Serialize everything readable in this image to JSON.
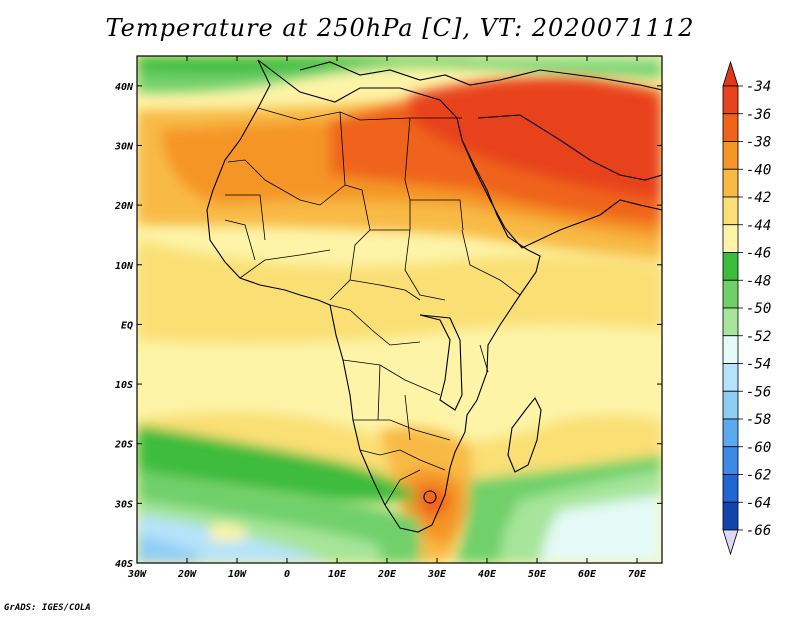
{
  "title": "Temperature at 250hPa [C], VT: 2020071112",
  "credit": "GrADS: IGES/COLA",
  "map": {
    "lon_range": [
      -30,
      75
    ],
    "lat_range": [
      -40,
      45
    ],
    "lon_ticks": [
      {
        "value": -30,
        "label": "30W"
      },
      {
        "value": -20,
        "label": "20W"
      },
      {
        "value": -10,
        "label": "10W"
      },
      {
        "value": 0,
        "label": "0"
      },
      {
        "value": 10,
        "label": "10E"
      },
      {
        "value": 20,
        "label": "20E"
      },
      {
        "value": 30,
        "label": "30E"
      },
      {
        "value": 40,
        "label": "40E"
      },
      {
        "value": 50,
        "label": "50E"
      },
      {
        "value": 60,
        "label": "60E"
      },
      {
        "value": 70,
        "label": "70E"
      }
    ],
    "lat_ticks": [
      {
        "value": 40,
        "label": "40N"
      },
      {
        "value": 30,
        "label": "30N"
      },
      {
        "value": 20,
        "label": "20N"
      },
      {
        "value": 10,
        "label": "10N"
      },
      {
        "value": 0,
        "label": "EQ"
      },
      {
        "value": -10,
        "label": "10S"
      },
      {
        "value": -20,
        "label": "20S"
      },
      {
        "value": -30,
        "label": "30S"
      },
      {
        "value": -40,
        "label": "40S"
      }
    ],
    "field": "temperature",
    "level": "250hPa",
    "units": "C"
  },
  "colorbar": {
    "levels": [
      {
        "label": "-34",
        "color": "#e8431c"
      },
      {
        "label": "-36",
        "color": "#f0641a"
      },
      {
        "label": "-38",
        "color": "#f59528"
      },
      {
        "label": "-40",
        "color": "#f8ba45"
      },
      {
        "label": "-42",
        "color": "#fadf75"
      },
      {
        "label": "-44",
        "color": "#fdf4a8"
      },
      {
        "label": "-46",
        "color": "#3cbc3d"
      },
      {
        "label": "-48",
        "color": "#6fd06a"
      },
      {
        "label": "-50",
        "color": "#a6e59a"
      },
      {
        "label": "-52",
        "color": "#e4faf6"
      },
      {
        "label": "-54",
        "color": "#b5e3fa"
      },
      {
        "label": "-56",
        "color": "#90cdf5"
      },
      {
        "label": "-58",
        "color": "#5ba9ee"
      },
      {
        "label": "-60",
        "color": "#3a8ae6"
      },
      {
        "label": "-62",
        "color": "#1f66d4"
      },
      {
        "label": "-64",
        "color": "#1145ae"
      },
      {
        "label": "-66",
        "color": "#0a1f78"
      }
    ],
    "top_cap_color": "#e0391a",
    "bottom_cap_color": "#ddd8f4"
  }
}
